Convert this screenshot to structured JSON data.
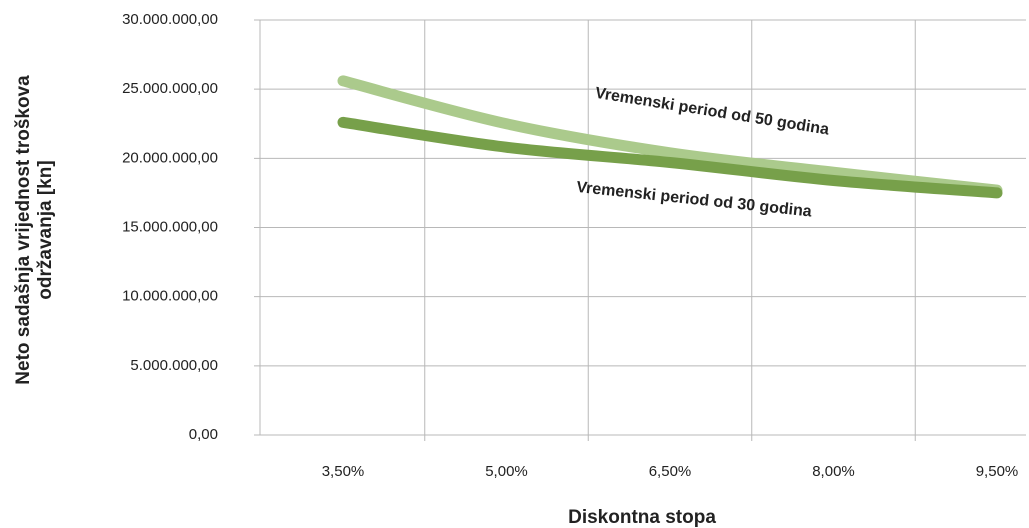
{
  "chart_data": {
    "type": "line",
    "ylabel": [
      "Neto sadašnja vrijednost troškova",
      "održavanja [kn]"
    ],
    "xlabel": "Diskontna stopa",
    "categories": [
      "3,50%",
      "5,00%",
      "6,50%",
      "8,00%",
      "9,50%"
    ],
    "series": [
      {
        "name": "Vremenski period od 50 godina",
        "color": "#abca8c",
        "values": [
          25600000,
          22500000,
          20400000,
          19000000,
          17700000
        ]
      },
      {
        "name": "Vremenski period od 30 godina",
        "color": "#77a04a",
        "values": [
          22600000,
          20800000,
          19700000,
          18400000,
          17500000
        ]
      }
    ],
    "ylim": [
      0,
      30000000
    ],
    "yticks": [
      {
        "value": 0,
        "label": "0,00"
      },
      {
        "value": 5000000,
        "label": "5.000.000,00"
      },
      {
        "value": 10000000,
        "label": "10.000.000,00"
      },
      {
        "value": 15000000,
        "label": "15.000.000,00"
      },
      {
        "value": 20000000,
        "label": "20.000.000,00"
      },
      {
        "value": 25000000,
        "label": "25.000.000,00"
      },
      {
        "value": 30000000,
        "label": "30.000.000,00"
      }
    ],
    "grid": true
  }
}
